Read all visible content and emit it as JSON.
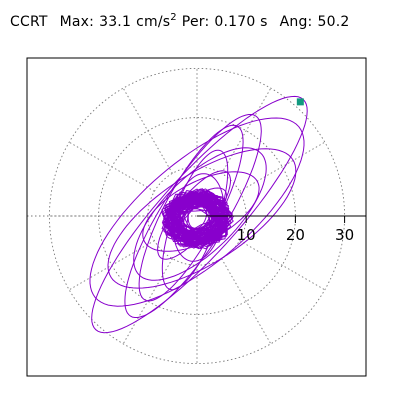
{
  "title": {
    "station": "CCRT",
    "max_label": "Max:",
    "max_value": "33.1",
    "max_unit": "cm/s",
    "max_unit_exp": "2",
    "per_label": "Per:",
    "per_value": "0.170 s",
    "ang_label": "Ang:",
    "ang_value": "50.2"
  },
  "colors": {
    "trace": "#8800cc",
    "marker": "#11997f",
    "grid": "#777777"
  },
  "chart_data": {
    "type": "scatter",
    "kind": "polar particle-motion hodogram",
    "r_ticks": [
      "10",
      "20",
      "30"
    ],
    "r_tick_values": [
      10,
      20,
      30
    ],
    "r_max": 36,
    "grid": "on",
    "max_amplitude": 33.1,
    "angle_deg": 50.2,
    "period_s": 0.17,
    "end_marker": {
      "x": 21.0,
      "y": 23.2
    },
    "orbits": [
      {
        "a": 31.5,
        "b": 8.0,
        "rot": 48,
        "cx": 0.5,
        "cy": 0.3
      },
      {
        "a": 27.0,
        "b": 10.5,
        "rot": 40,
        "cx": 0.0,
        "cy": 0.8
      },
      {
        "a": 24.0,
        "b": 6.5,
        "rot": 58,
        "cx": -0.8,
        "cy": 0.0
      },
      {
        "a": 22.0,
        "b": 9.0,
        "rot": 33,
        "cx": 1.0,
        "cy": -0.5
      },
      {
        "a": 20.0,
        "b": 5.5,
        "rot": 62,
        "cx": -1.2,
        "cy": 0.6
      },
      {
        "a": 17.5,
        "b": 7.5,
        "rot": 45,
        "cx": 0.6,
        "cy": 0.4
      },
      {
        "a": 15.0,
        "b": 4.5,
        "rot": 70,
        "cx": -0.4,
        "cy": -0.8
      },
      {
        "a": 13.0,
        "b": 6.0,
        "rot": 28,
        "cx": 0.8,
        "cy": 0.9
      },
      {
        "a": 11.0,
        "b": 3.8,
        "rot": 52,
        "cx": -0.6,
        "cy": 0.2
      },
      {
        "a": 9.0,
        "b": 5.0,
        "rot": 80,
        "cx": 0.3,
        "cy": -0.3
      },
      {
        "a": 7.5,
        "b": 3.0,
        "rot": 38,
        "cx": -0.2,
        "cy": 0.5
      },
      {
        "a": 5.5,
        "b": 3.5,
        "rot": 60,
        "cx": 0.4,
        "cy": -0.1
      },
      {
        "a": 4.0,
        "b": 2.2,
        "rot": 20,
        "cx": -0.3,
        "cy": -0.4
      },
      {
        "a": 2.8,
        "b": 1.8,
        "rot": 75,
        "cx": 0.1,
        "cy": 0.2
      }
    ]
  }
}
